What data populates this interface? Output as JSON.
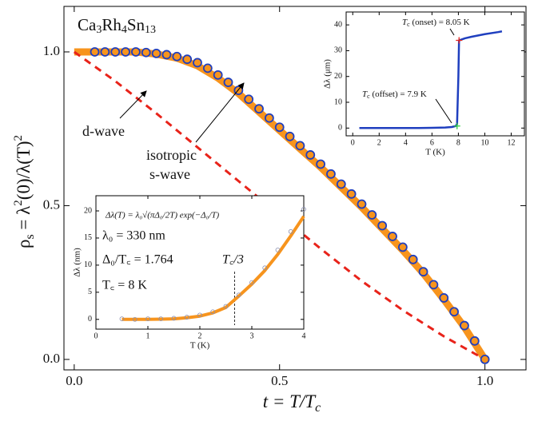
{
  "chart_data": [
    {
      "type": "line",
      "title": [
        "Ca",
        "3",
        "Rh",
        "4",
        "Sn",
        "13"
      ],
      "xlabel": [
        "t = T/T",
        "c"
      ],
      "ylabel": [
        "ρ",
        "s",
        " = λ",
        "2",
        "(0)/λ(T)",
        "2"
      ],
      "xlim": [
        -0.025,
        1.1
      ],
      "ylim": [
        -0.034,
        1.148
      ],
      "xticks": [
        {
          "value": 0,
          "label": "0.0"
        },
        {
          "value": 0.5,
          "label": "0.5"
        },
        {
          "value": 1,
          "label": "1.0"
        }
      ],
      "yticks": [
        {
          "value": 0,
          "label": "0.0"
        },
        {
          "value": 0.5,
          "label": "0.5"
        },
        {
          "value": 1,
          "label": "1.0"
        }
      ],
      "annotations": [
        "d-wave",
        "isotropic",
        "s-wave"
      ],
      "series": [
        {
          "style": "line",
          "color": "#f7941d",
          "x": [
            0,
            0.05,
            0.1,
            0.15,
            0.2,
            0.25,
            0.3,
            0.35,
            0.4,
            0.45,
            0.5,
            0.55,
            0.6,
            0.65,
            0.7,
            0.75,
            0.8,
            0.85,
            0.9,
            0.95,
            1.0
          ],
          "values": [
            1,
            1,
            1,
            1,
            0.993,
            0.98,
            0.955,
            0.915,
            0.865,
            0.805,
            0.745,
            0.685,
            0.625,
            0.56,
            0.495,
            0.425,
            0.355,
            0.28,
            0.195,
            0.105,
            0
          ]
        },
        {
          "style": "dashed",
          "color": "#e8231a",
          "x": [
            0,
            0.1,
            0.2,
            0.3,
            0.4,
            0.5,
            0.6,
            0.7,
            0.8,
            0.9,
            1.0
          ],
          "values": [
            1,
            0.905,
            0.8,
            0.69,
            0.58,
            0.47,
            0.36,
            0.255,
            0.16,
            0.075,
            0
          ]
        },
        {
          "style": "circle",
          "color": "#1f3fbf",
          "x": [
            0.05,
            0.075,
            0.1,
            0.125,
            0.15,
            0.175,
            0.2,
            0.225,
            0.25,
            0.275,
            0.3,
            0.325,
            0.35,
            0.375,
            0.4,
            0.425,
            0.45,
            0.475,
            0.5,
            0.525,
            0.55,
            0.575,
            0.6,
            0.625,
            0.65,
            0.675,
            0.7,
            0.725,
            0.75,
            0.775,
            0.8,
            0.825,
            0.85,
            0.875,
            0.9,
            0.925,
            0.95,
            0.975,
            1.0
          ],
          "values": [
            1,
            1,
            1,
            1,
            1,
            0.998,
            0.995,
            0.991,
            0.985,
            0.976,
            0.965,
            0.947,
            0.925,
            0.901,
            0.875,
            0.846,
            0.815,
            0.785,
            0.755,
            0.725,
            0.695,
            0.665,
            0.635,
            0.603,
            0.57,
            0.538,
            0.505,
            0.47,
            0.435,
            0.4,
            0.365,
            0.325,
            0.285,
            0.243,
            0.2,
            0.155,
            0.11,
            0.06,
            0
          ]
        }
      ]
    },
    {
      "type": "line",
      "xlabel": "T (K)",
      "ylabel": "Δλ (μm)",
      "xlim": [
        -0.5,
        13
      ],
      "ylim": [
        -3,
        45
      ],
      "xticks": [
        0,
        2,
        4,
        6,
        8,
        10,
        12
      ],
      "yticks": [
        0,
        10,
        20,
        30,
        40
      ],
      "annotations": [
        [
          "T",
          "c",
          " (onset) = 8.05 K"
        ],
        [
          "T",
          "c",
          " (offset) = 7.9 K"
        ]
      ],
      "markers": [
        {
          "x": 8.05,
          "y": 34,
          "color": "#e8231a"
        },
        {
          "x": 7.9,
          "y": 0.8,
          "color": "#2ecc40"
        }
      ],
      "series": [
        {
          "style": "line",
          "color": "#1f3fbf",
          "x": [
            0.5,
            1,
            2,
            3,
            4,
            5,
            6,
            7,
            7.5,
            7.8,
            7.9,
            8.0,
            8.05,
            8.5,
            9,
            10,
            11,
            11.3
          ],
          "values": [
            0,
            0,
            0,
            0,
            0,
            0,
            0.1,
            0.2,
            0.4,
            0.8,
            1.5,
            20,
            34,
            34.8,
            35.4,
            36.4,
            37.2,
            37.5
          ]
        }
      ]
    },
    {
      "type": "line",
      "xlabel": "T (K)",
      "ylabel": "Δλ (nm)",
      "xlim": [
        0,
        4
      ],
      "ylim": [
        -1.8,
        22.8
      ],
      "xticks": [
        0,
        1,
        2,
        3,
        4
      ],
      "yticks": [
        0,
        5,
        10,
        15,
        20
      ],
      "annotations": [
        "Δλ(T) = λ₀√(πΔ₀/2T) exp(−Δ₀/T)",
        "λ₀ = 330 nm",
        "Δ₀/T꜀ = 1.764",
        "T꜀ = 8 K",
        "T꜀/3"
      ],
      "vline": 2.67,
      "series": [
        {
          "style": "line",
          "color": "#f7941d",
          "x": [
            0.5,
            0.75,
            1,
            1.25,
            1.5,
            1.75,
            2,
            2.25,
            2.5,
            2.75,
            3,
            3.25,
            3.5,
            3.75,
            4
          ],
          "values": [
            0,
            0,
            0,
            0.05,
            0.1,
            0.3,
            0.6,
            1.2,
            2.2,
            4.3,
            6.5,
            9.0,
            12,
            15.4,
            19
          ]
        },
        {
          "style": "circle",
          "color": "#8a8fb0",
          "x": [
            0.5,
            0.75,
            1,
            1.25,
            1.5,
            1.75,
            2,
            2.25,
            2.5,
            2.75,
            3,
            3.25,
            3.5,
            3.75,
            4
          ],
          "values": [
            0.1,
            0,
            0.1,
            0.1,
            0.2,
            0.4,
            0.8,
            1.4,
            2.4,
            4.5,
            6.8,
            9.5,
            12.8,
            16.2,
            20.3
          ]
        }
      ]
    }
  ]
}
